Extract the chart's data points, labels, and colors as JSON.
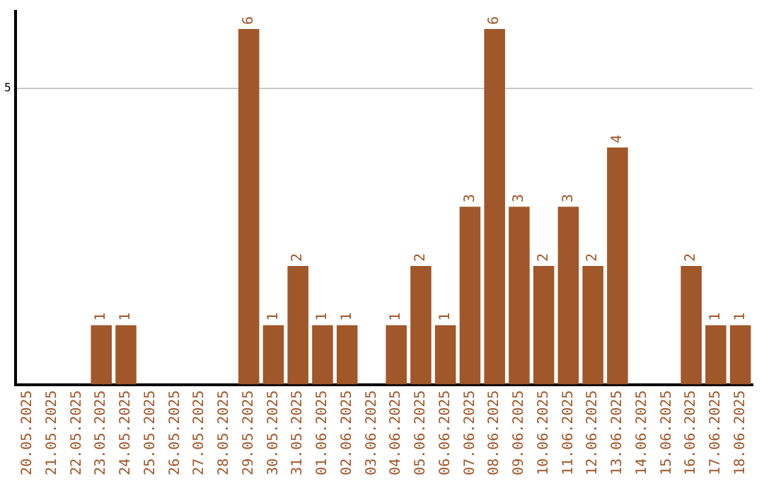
{
  "chart_data": {
    "type": "bar",
    "categories": [
      "20.05.2025",
      "21.05.2025",
      "22.05.2025",
      "23.05.2025",
      "24.05.2025",
      "25.05.2025",
      "26.05.2025",
      "27.05.2025",
      "28.05.2025",
      "29.05.2025",
      "30.05.2025",
      "31.05.2025",
      "01.06.2025",
      "02.06.2025",
      "03.06.2025",
      "04.06.2025",
      "05.06.2025",
      "06.06.2025",
      "07.06.2025",
      "08.06.2025",
      "09.06.2025",
      "10.06.2025",
      "11.06.2025",
      "12.06.2025",
      "13.06.2025",
      "14.06.2025",
      "15.06.2025",
      "16.06.2025",
      "17.06.2025",
      "18.06.2025"
    ],
    "values": [
      0,
      0,
      0,
      1,
      1,
      0,
      0,
      0,
      0,
      6,
      1,
      2,
      1,
      1,
      0,
      1,
      2,
      1,
      3,
      6,
      3,
      2,
      3,
      2,
      4,
      0,
      0,
      2,
      1,
      1
    ],
    "value_labels": [
      null,
      null,
      null,
      "1",
      "1",
      null,
      null,
      null,
      null,
      "6",
      "1",
      "2",
      "1",
      "1",
      null,
      "1",
      "2",
      "1",
      "3",
      "6",
      "3",
      "2",
      "3",
      "2",
      "4",
      null,
      null,
      "2",
      "1",
      "1"
    ],
    "color": "#a0572a",
    "ylim": [
      0,
      6.3
    ],
    "yticks": [
      5
    ],
    "grid": "y",
    "legend": false
  }
}
